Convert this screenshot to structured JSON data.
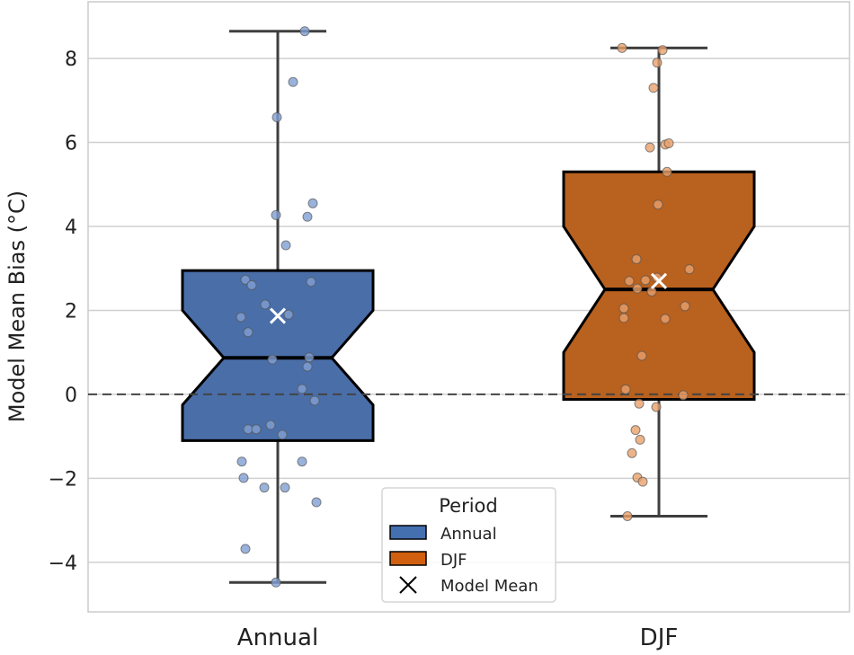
{
  "chart_data": {
    "type": "boxplot",
    "title": "",
    "xlabel": "",
    "ylabel": "Model Mean Bias (°C)",
    "ylim": [
      -5.18,
      9.35
    ],
    "yticks": [
      -4,
      -2,
      0,
      2,
      4,
      6,
      8
    ],
    "ytick_labels": [
      "−4",
      "−2",
      "0",
      "2",
      "4",
      "6",
      "8"
    ],
    "grid": "horizontal",
    "reference_line": 0,
    "categories": [
      "Annual",
      "DJF"
    ],
    "boxes": [
      {
        "name": "Annual",
        "color": "#4a6ea8",
        "point_color": "#7f9fd3",
        "whisker_low": -4.48,
        "q1": -1.1,
        "median": 0.87,
        "q3": 2.95,
        "whisker_high": 8.65,
        "notch_low": -0.25,
        "notch_high": 2.0,
        "mean": 1.87,
        "points": [
          8.65,
          7.44,
          6.6,
          4.27,
          4.55,
          4.23,
          3.55,
          2.73,
          2.6,
          2.68,
          2.14,
          1.84,
          1.9,
          1.48,
          0.83,
          0.88,
          0.66,
          0.13,
          -0.15,
          -0.73,
          -0.83,
          -0.83,
          -0.96,
          -1.6,
          -1.6,
          -1.99,
          -2.22,
          -2.22,
          -2.57,
          -3.68,
          -4.48
        ]
      },
      {
        "name": "DJF",
        "color": "#b9611e",
        "point_color": "#e9a06c",
        "whisker_low": -2.9,
        "q1": -0.12,
        "median": 2.5,
        "q3": 5.3,
        "whisker_high": 8.25,
        "notch_low": 1.0,
        "notch_high": 4.0,
        "mean": 2.7,
        "points": [
          8.25,
          8.2,
          7.9,
          7.3,
          5.88,
          5.95,
          5.98,
          5.3,
          4.52,
          3.22,
          2.98,
          2.78,
          2.72,
          2.45,
          2.7,
          2.52,
          2.1,
          2.05,
          1.8,
          1.82,
          0.92,
          0.12,
          -0.02,
          -0.22,
          -0.3,
          -0.85,
          -1.08,
          -1.4,
          -1.98,
          -2.08,
          -2.9
        ]
      }
    ],
    "legend": {
      "title": "Period",
      "placement": "lower-center",
      "entries": [
        {
          "label": "Annual",
          "color": "#4470b0",
          "marker": "patch"
        },
        {
          "label": "DJF",
          "color": "#d0600f",
          "marker": "patch"
        },
        {
          "label": "Model Mean",
          "color": "#000000",
          "marker": "x"
        }
      ]
    }
  }
}
